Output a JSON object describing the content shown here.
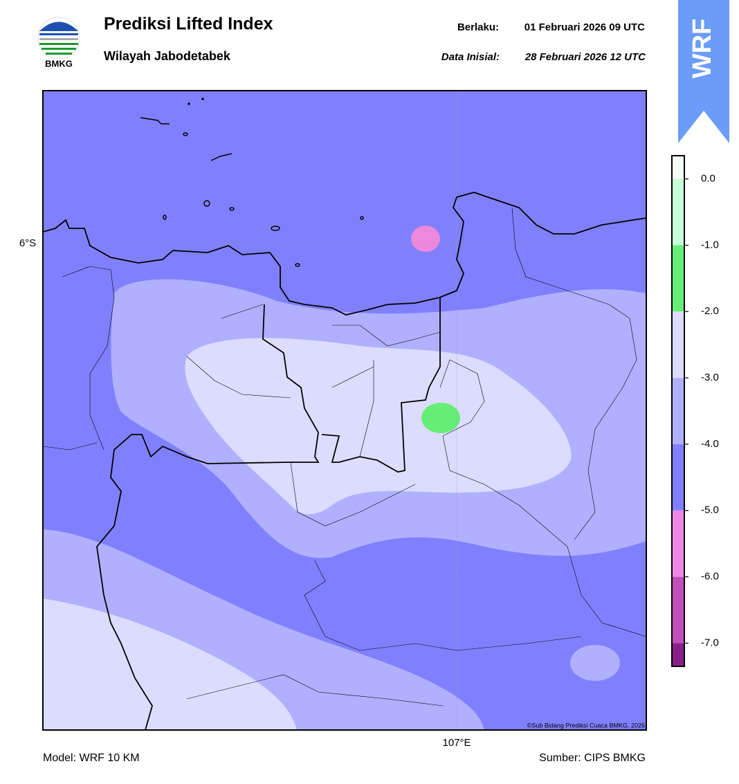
{
  "header": {
    "logo_text": "BMKG",
    "title": "Prediksi Lifted Index",
    "subtitle": "Wilayah Jabodetabek",
    "valid_label": "Berlaku:",
    "valid_time": "01 Februari 2026 09 UTC",
    "init_label": "Data Inisial:",
    "init_time": "28 Februari 2026 12 UTC",
    "badge": "WRF"
  },
  "map": {
    "lat_label": "6°S",
    "lon_label": "107°E",
    "credit": "©Sub Bidang Prediksi Cuaca BMKG, 2026"
  },
  "colorbar": {
    "lim": [
      -7.35,
      0.35
    ],
    "ticks": [
      {
        "value": 0,
        "label": "0.0"
      },
      {
        "value": -1,
        "label": "-1.0"
      },
      {
        "value": -2,
        "label": "-2.0"
      },
      {
        "value": -3,
        "label": "-3.0"
      },
      {
        "value": -4,
        "label": "-4.0"
      },
      {
        "value": -5,
        "label": "-5.0"
      },
      {
        "value": -6,
        "label": "-6.0"
      },
      {
        "value": -7,
        "label": "-7.0"
      }
    ],
    "levels": [
      0.35,
      0,
      -1,
      -2,
      -3,
      -4,
      -5,
      -6,
      -7,
      -7.35
    ],
    "colors": [
      "#f4fff8",
      "#c8ffd8",
      "#66ee77",
      "#dcdcff",
      "#b0b0ff",
      "#8080ff",
      "#ee88e8",
      "#c050b8",
      "#882288"
    ]
  },
  "footer": {
    "model": "Model: WRF 10 KM",
    "source": "Sumber: CIPS BMKG"
  }
}
